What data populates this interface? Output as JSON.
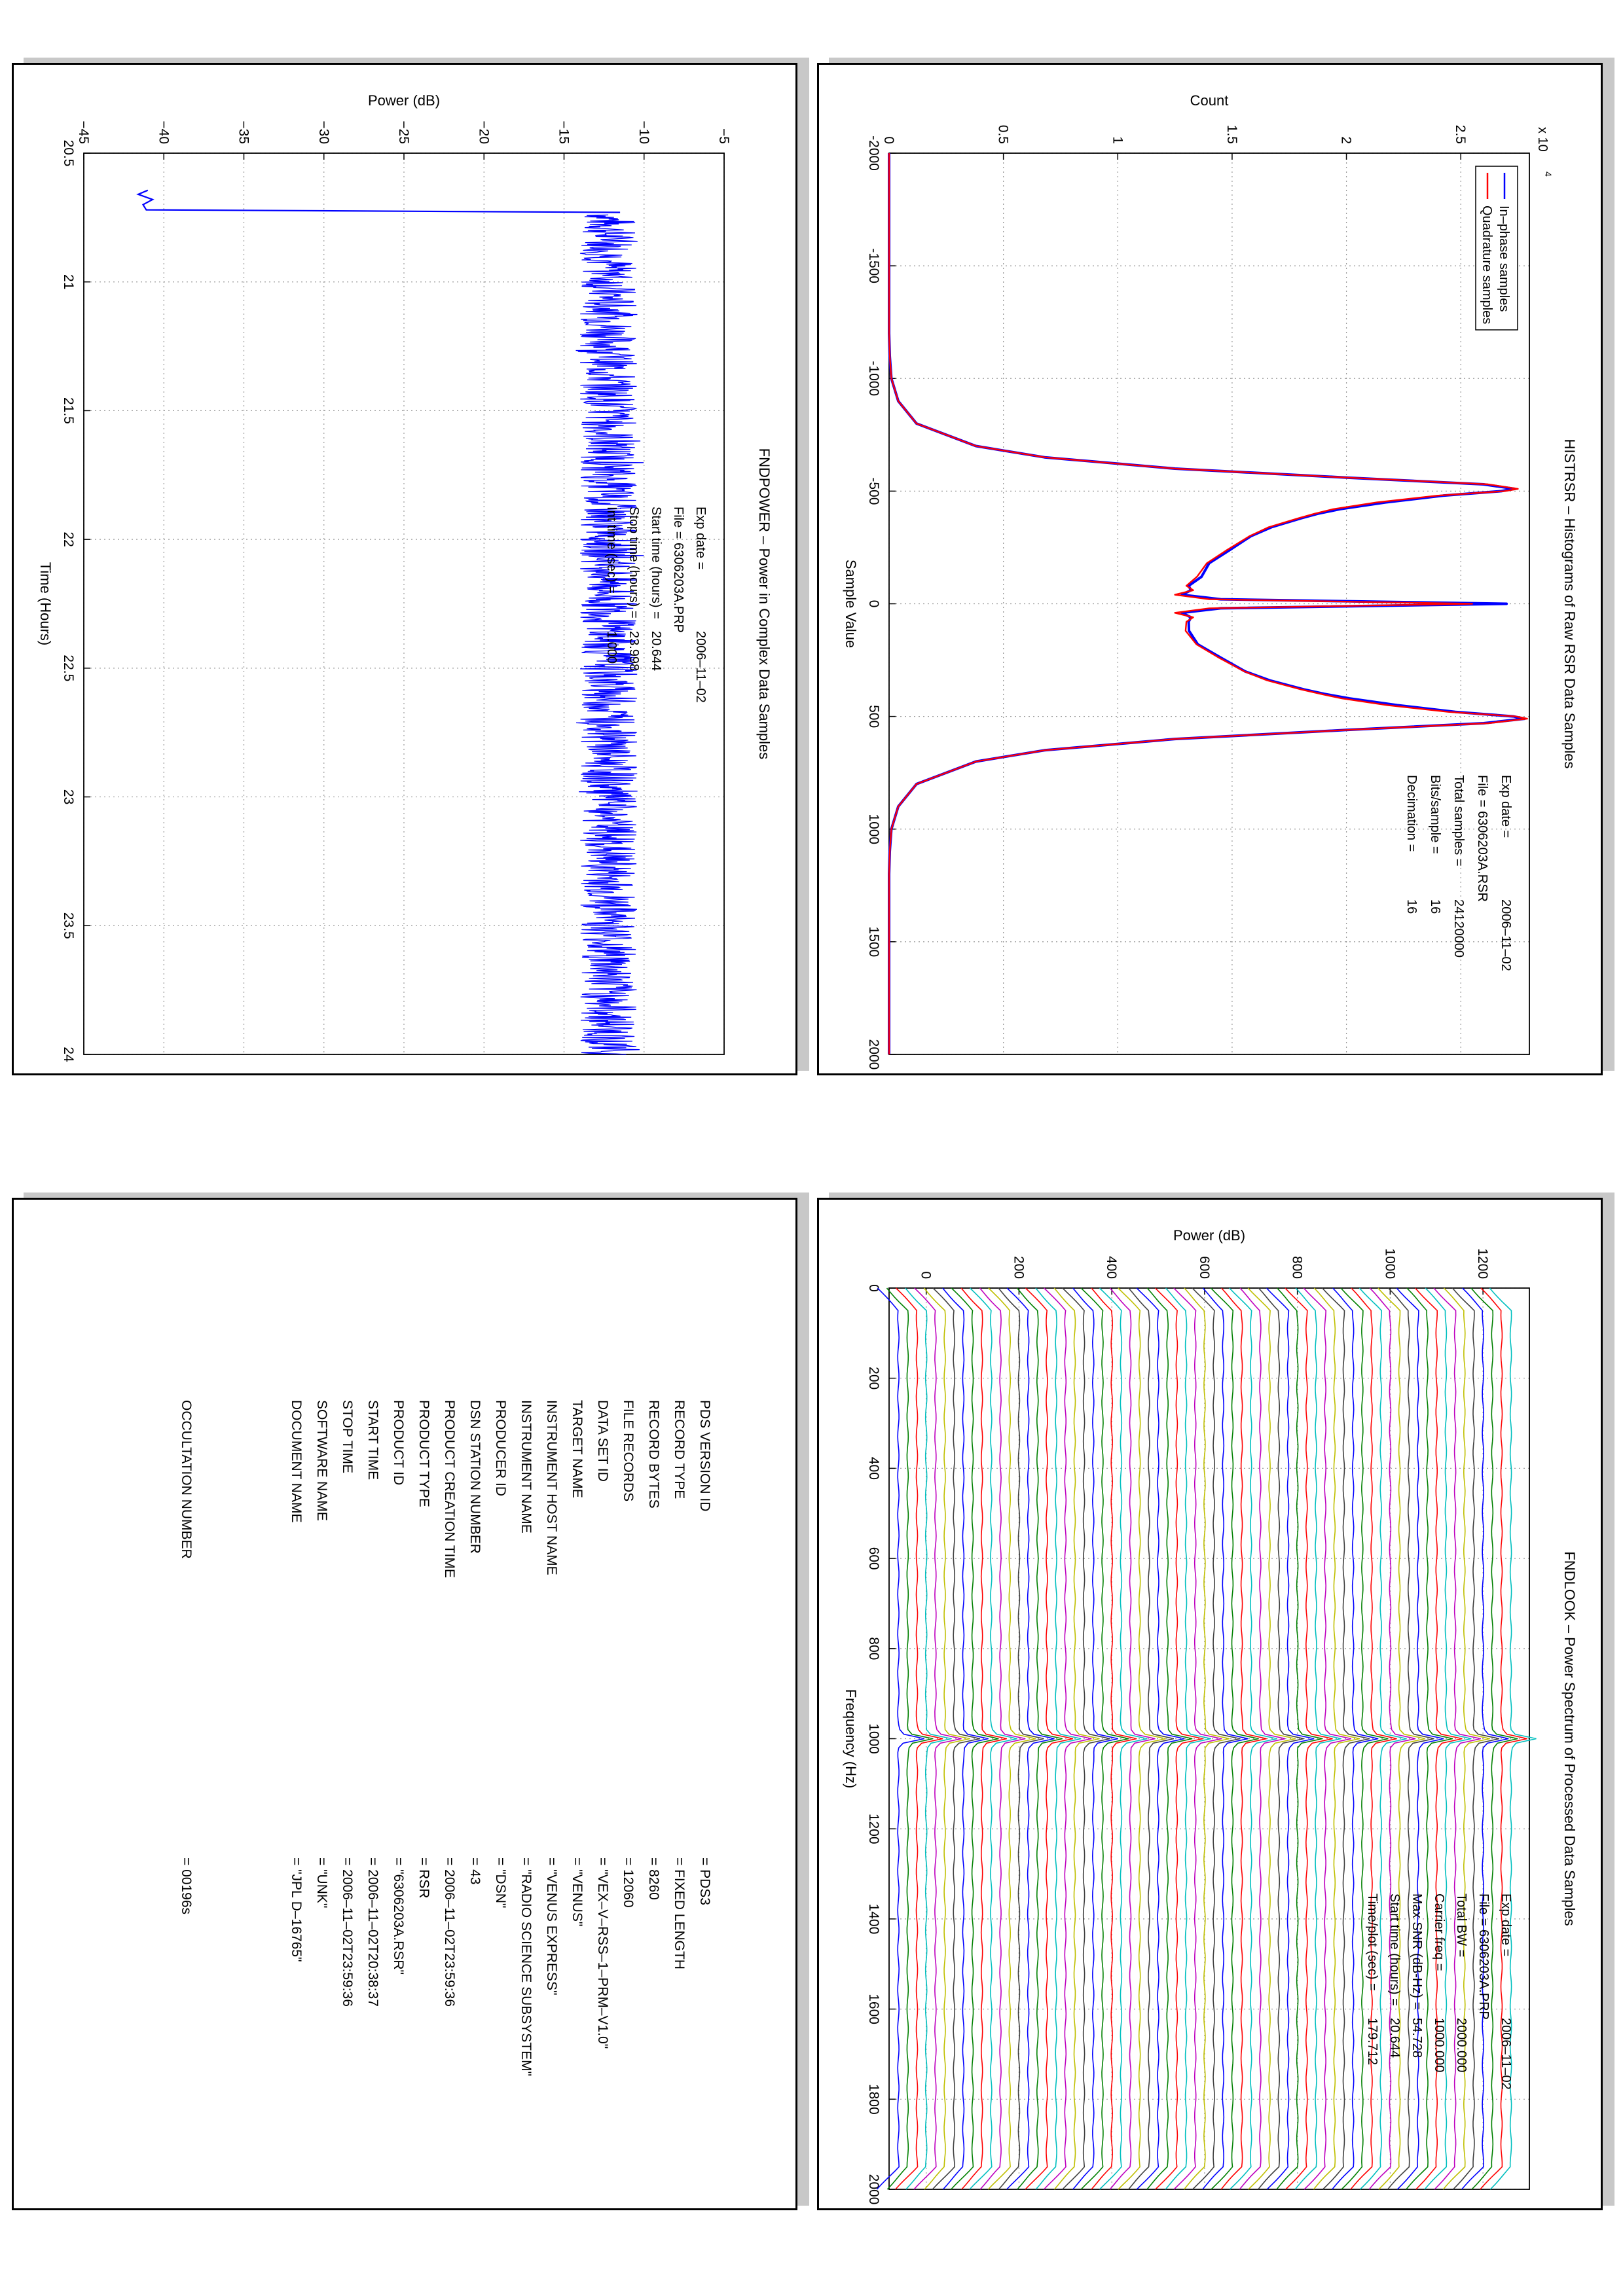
{
  "panels": {
    "histrsr": {
      "title": "HISTRSR – Histograms of Raw RSR Data Samples",
      "info": [
        {
          "k": "Exp date =",
          "v": "2006–11–02"
        },
        {
          "k": "File = 6306203A.RSR",
          "v": ""
        },
        {
          "k": "Total samples =",
          "v": "24120000"
        },
        {
          "k": "Bits/sample  =",
          "v": "16"
        },
        {
          "k": "Decimation  =",
          "v": "16"
        }
      ]
    },
    "findpower": {
      "title": "FNDPOWER – Power in Complex Data Samples",
      "info": [
        {
          "k": "Exp date =",
          "v": "2006–11–02"
        },
        {
          "k": "File = 6306203A.PRP",
          "v": ""
        },
        {
          "k": "Start time (hours) =",
          "v": "20.644"
        },
        {
          "k": "Stop time (hours) =",
          "v": "23.998"
        },
        {
          "k": "Int time (sec) =",
          "v": "1.000"
        }
      ]
    },
    "findlook": {
      "title": "FNDLOOK – Power Spectrum of Processed Data Samples",
      "info": [
        {
          "k": "Exp date =",
          "v": "2006–11–02"
        },
        {
          "k": "File = 6306203A.PRP",
          "v": ""
        },
        {
          "k": "Total BW =",
          "v": "2000.000"
        },
        {
          "k": "Carrier freq =",
          "v": "1000.000"
        },
        {
          "k": "Max SNR (dB-Hz) =",
          "v": "54.728"
        },
        {
          "k": "Start time (hours) =",
          "v": "20.644"
        },
        {
          "k": "Time/plot (sec) =",
          "v": "179.712"
        }
      ]
    },
    "label": {
      "rows": [
        {
          "k": "PDS VERSION ID",
          "v": "= PDS3"
        },
        {
          "k": "RECORD TYPE",
          "v": "= FIXED LENGTH"
        },
        {
          "k": "RECORD BYTES",
          "v": "= 8260"
        },
        {
          "k": "FILE RECORDS",
          "v": "= 12060"
        },
        {
          "k": "DATA SET ID",
          "v": "= \"VEX–V–RSS–1–PRM–V1.0\""
        },
        {
          "k": "TARGET NAME",
          "v": "= \"VENUS\""
        },
        {
          "k": "INSTRUMENT HOST NAME",
          "v": "= \"VENUS EXPRESS\""
        },
        {
          "k": "INSTRUMENT NAME",
          "v": "= \"RADIO SCIENCE SUBSYSTEM\""
        },
        {
          "k": "PRODUCER ID",
          "v": "= \"DSN\""
        },
        {
          "k": "DSN STATION NUMBER",
          "v": "= 43"
        },
        {
          "k": "PRODUCT CREATION TIME",
          "v": "= 2006–11–02T23:59:36"
        },
        {
          "k": "PRODUCT TYPE",
          "v": "= RSR"
        },
        {
          "k": "PRODUCT ID",
          "v": "= \"6306203A.RSR\""
        },
        {
          "k": "START TIME",
          "v": "= 2006–11–02T20:38:37"
        },
        {
          "k": "STOP TIME",
          "v": "= 2006–11–02T23:59:36"
        },
        {
          "k": "SOFTWARE NAME",
          "v": "= \"UNK\""
        },
        {
          "k": "DOCUMENT NAME",
          "v": "= \"JPL D–16765\""
        }
      ],
      "occultation_key": "OCCULTATION NUMBER",
      "occultation_value": "= 00196s"
    }
  },
  "chart_data": [
    {
      "type": "line",
      "title": "HISTRSR – Histograms of Raw RSR Data Samples",
      "xlabel": "Sample Value",
      "ylabel": "Count",
      "y_multiplier_label": "x 10",
      "y_multiplier_exp": "4",
      "xlim": [
        -2000,
        2000
      ],
      "ylim": [
        0,
        2.8
      ],
      "xticks": [
        -2000,
        -1500,
        -1000,
        -500,
        0,
        500,
        1000,
        1500,
        2000
      ],
      "yticks": [
        0,
        0.5,
        1,
        1.5,
        2,
        2.5
      ],
      "ytick_labels": [
        "0",
        "0.5",
        "1",
        "1.5",
        "2",
        "2.5"
      ],
      "grid": true,
      "legend": "top-right",
      "series": [
        {
          "name": "In–phase samples",
          "color": "#0000ff",
          "x": [
            -2000,
            -1200,
            -1100,
            -1000,
            -900,
            -800,
            -700,
            -650,
            -600,
            -560,
            -530,
            -510,
            -500,
            -480,
            -450,
            -420,
            -400,
            -380,
            -340,
            -300,
            -240,
            -180,
            -120,
            -80,
            -60,
            -40,
            -20,
            0,
            20,
            40,
            60,
            80,
            120,
            180,
            240,
            300,
            340,
            380,
            400,
            420,
            450,
            480,
            500,
            510,
            530,
            560,
            600,
            650,
            700,
            800,
            900,
            1000,
            1100,
            1200,
            2000
          ],
          "values": [
            0,
            0,
            0.003,
            0.01,
            0.04,
            0.12,
            0.38,
            0.68,
            1.25,
            2.0,
            2.6,
            2.75,
            2.7,
            2.45,
            2.2,
            2.0,
            1.9,
            1.82,
            1.68,
            1.58,
            1.48,
            1.38,
            1.34,
            1.31,
            1.32,
            1.28,
            1.45,
            2.7,
            1.45,
            1.28,
            1.32,
            1.31,
            1.34,
            1.38,
            1.48,
            1.58,
            1.68,
            1.82,
            1.9,
            2.0,
            2.2,
            2.45,
            2.7,
            2.75,
            2.6,
            2.0,
            1.25,
            0.68,
            0.38,
            0.12,
            0.04,
            0.01,
            0.003,
            0,
            0
          ]
        },
        {
          "name": "Quadrature samples",
          "color": "#ff0000",
          "x": [
            -2000,
            -1200,
            -1100,
            -1000,
            -900,
            -800,
            -700,
            -650,
            -600,
            -560,
            -530,
            -510,
            -500,
            -480,
            -450,
            -420,
            -400,
            -380,
            -340,
            -300,
            -240,
            -180,
            -120,
            -80,
            -60,
            -40,
            -20,
            0,
            20,
            40,
            60,
            80,
            120,
            180,
            240,
            300,
            340,
            380,
            400,
            420,
            450,
            480,
            500,
            510,
            530,
            560,
            600,
            650,
            700,
            800,
            900,
            1000,
            1100,
            1200,
            2000
          ],
          "values": [
            0,
            0,
            0.003,
            0.01,
            0.04,
            0.12,
            0.38,
            0.68,
            1.25,
            2.0,
            2.62,
            2.78,
            2.72,
            2.42,
            2.15,
            1.95,
            1.86,
            1.78,
            1.64,
            1.55,
            1.45,
            1.36,
            1.32,
            1.3,
            1.33,
            1.25,
            1.4,
            2.55,
            1.4,
            1.25,
            1.33,
            1.3,
            1.32,
            1.36,
            1.45,
            1.55,
            1.64,
            1.78,
            1.86,
            1.95,
            2.15,
            2.42,
            2.72,
            2.78,
            2.62,
            2.0,
            1.25,
            0.68,
            0.38,
            0.12,
            0.04,
            0.01,
            0.003,
            0,
            0
          ]
        }
      ]
    },
    {
      "type": "line",
      "title": "FNDPOWER – Power in Complex Data Samples",
      "xlabel": "Time (Hours)",
      "ylabel": "Power (dB)",
      "xlim": [
        20.5,
        24
      ],
      "ylim": [
        -45,
        -5
      ],
      "xticks": [
        20.5,
        21,
        21.5,
        22,
        22.5,
        23,
        23.5,
        24
      ],
      "yticks": [
        -45,
        -40,
        -35,
        -30,
        -25,
        -20,
        -15,
        -10,
        -5
      ],
      "ytick_labels": [
        "−45",
        "−40",
        "−35",
        "−30",
        "−25",
        "−20",
        "−15",
        "−10",
        "−5"
      ],
      "grid": true,
      "series": [
        {
          "name": "",
          "color": "#0000ff",
          "x": [
            20.644,
            20.66,
            20.68,
            20.7,
            20.72,
            20.73,
            20.74,
            24.0
          ],
          "values": [
            -41.0,
            -41.6,
            -40.7,
            -41.3,
            -41.1,
            -11.5,
            -12.2,
            -12.2
          ]
        }
      ],
      "noise_band": {
        "x_start": 20.74,
        "x_end": 24.0,
        "center": -12.2,
        "halfwidth": 1.8,
        "color": "#0000ff"
      }
    },
    {
      "type": "line",
      "title": "FNDLOOK – Power Spectrum of Processed Data Samples",
      "xlabel": "Frequency (Hz)",
      "ylabel": "Power (dB)",
      "xlim": [
        0,
        2000
      ],
      "ylim": [
        -80,
        1300
      ],
      "xticks": [
        0,
        200,
        400,
        600,
        800,
        1000,
        1200,
        1400,
        1600,
        1800,
        2000
      ],
      "yticks": [
        0,
        200,
        400,
        600,
        800,
        1000,
        1200
      ],
      "ytick_labels": [
        "0",
        "200",
        "400",
        "600",
        "800",
        "1000",
        "1200"
      ],
      "grid": true,
      "stacked_spectra": {
        "count": 67,
        "offset_step": 20,
        "first_offset": -60,
        "peak_frequency": 1000,
        "peak_height": 55
      },
      "colors": [
        "#0000ff",
        "#008000",
        "#ff0000",
        "#00bfbf",
        "#bf00bf",
        "#bfbf00",
        "#404040"
      ]
    }
  ]
}
